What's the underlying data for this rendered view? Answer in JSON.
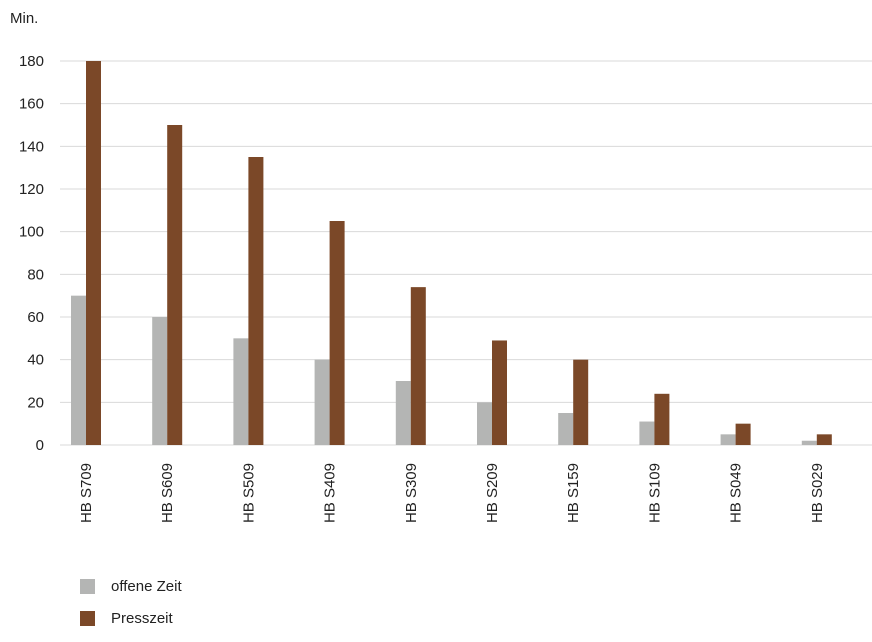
{
  "chart_data": {
    "type": "bar",
    "ylabel": "Min.",
    "ylim": [
      0,
      180
    ],
    "yticks": [
      0,
      20,
      40,
      60,
      80,
      100,
      120,
      140,
      160,
      180
    ],
    "grid": true,
    "legend_position": "bottom-left",
    "categories": [
      "HB S709",
      "HB S609",
      "HB S509",
      "HB S409",
      "HB S309",
      "HB S209",
      "HB S159",
      "HB S109",
      "HB S049",
      "HB S029"
    ],
    "series": [
      {
        "name": "offene Zeit",
        "color": "#b4b5b4",
        "values": [
          70,
          60,
          50,
          40,
          30,
          20,
          15,
          11,
          5,
          2
        ]
      },
      {
        "name": "Presszeit",
        "color": "#7b4828",
        "values": [
          180,
          150,
          135,
          105,
          74,
          49,
          40,
          24,
          10,
          5
        ]
      }
    ]
  }
}
